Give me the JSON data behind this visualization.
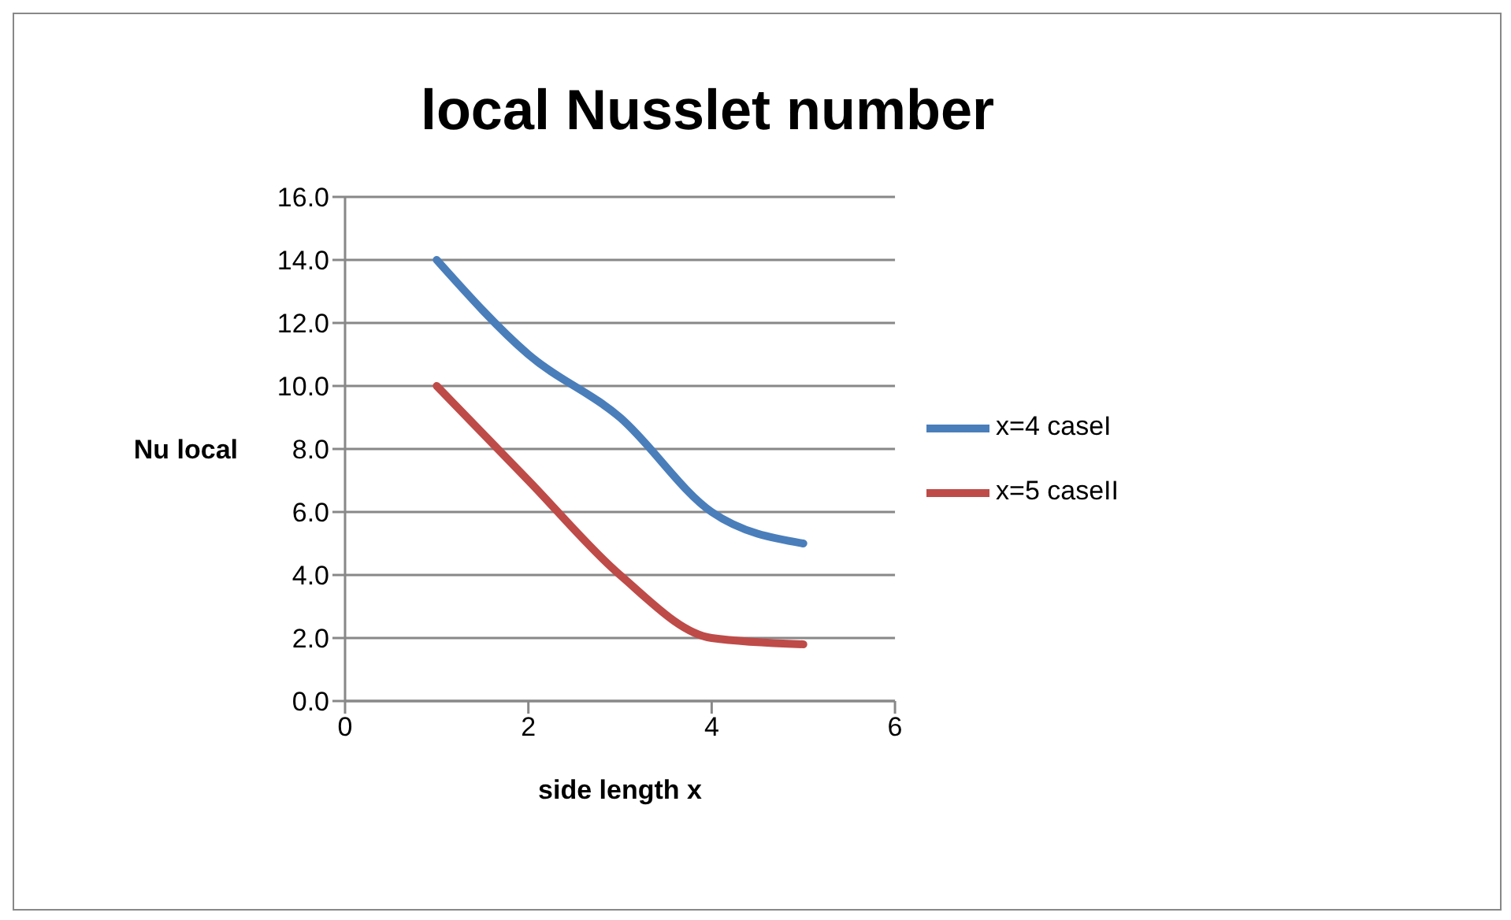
{
  "chart_data": {
    "type": "line",
    "title": "local Nusslet number",
    "xlabel": "side length  x",
    "ylabel": "Nu local",
    "x": [
      1,
      2,
      3,
      4,
      5
    ],
    "series": [
      {
        "name": "x=4 caseI",
        "color": "#4a7ebb",
        "values": [
          14,
          11,
          9,
          6,
          5
        ]
      },
      {
        "name": "x=5 caseII",
        "color": "#be4b48",
        "values": [
          10,
          7,
          4,
          2,
          1.8
        ]
      }
    ],
    "xlim": [
      0,
      6
    ],
    "xticks": [
      0,
      2,
      4,
      6
    ],
    "ylim": [
      0,
      16
    ],
    "yticks": [
      {
        "value": 0,
        "label": "0.0"
      },
      {
        "value": 2,
        "label": "2.0"
      },
      {
        "value": 4,
        "label": "4.0"
      },
      {
        "value": 6,
        "label": "6.0"
      },
      {
        "value": 8,
        "label": "8.0"
      },
      {
        "value": 10,
        "label": "10.0"
      },
      {
        "value": 12,
        "label": "12.0"
      },
      {
        "value": 14,
        "label": "14.0"
      },
      {
        "value": 16,
        "label": "16.0"
      }
    ],
    "grid": "y",
    "legend": "right"
  }
}
